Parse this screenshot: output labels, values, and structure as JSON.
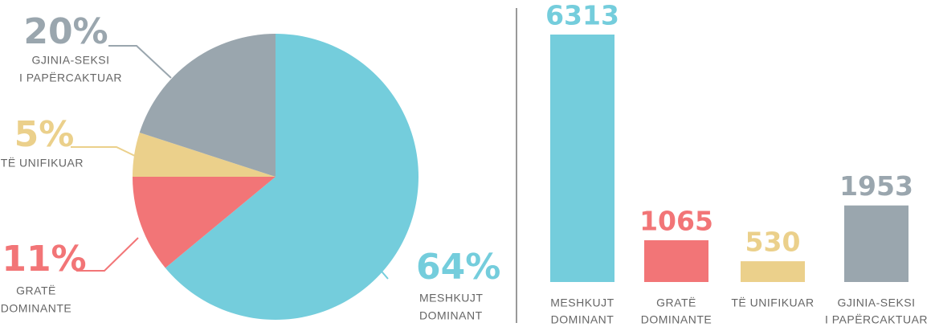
{
  "chart_data": [
    {
      "type": "pie",
      "categories": [
        [
          "MESHKUJT",
          "DOMINANT"
        ],
        [
          "GRATË",
          "DOMINANTE"
        ],
        [
          "TË UNIFIKUAR"
        ],
        [
          "GJINIA-SEKSI",
          "I PAPËRCAKTUAR"
        ]
      ],
      "values": [
        64,
        11,
        5,
        20
      ],
      "value_labels": [
        "64%",
        "11%",
        "5%",
        "20%"
      ],
      "colors": [
        "#74cddc",
        "#f27577",
        "#ebd08b",
        "#9aa6ae"
      ]
    },
    {
      "type": "bar",
      "categories": [
        [
          "MESHKUJT",
          "DOMINANT"
        ],
        [
          "GRATË",
          "DOMINANTE"
        ],
        [
          "TË UNIFIKUAR"
        ],
        [
          "GJINIA-SEKSI",
          "I PAPËRCAKTUAR"
        ]
      ],
      "values": [
        6313,
        1065,
        530,
        1953
      ],
      "colors": [
        "#74cddc",
        "#f27577",
        "#ebd08b",
        "#9aa6ae"
      ]
    }
  ]
}
